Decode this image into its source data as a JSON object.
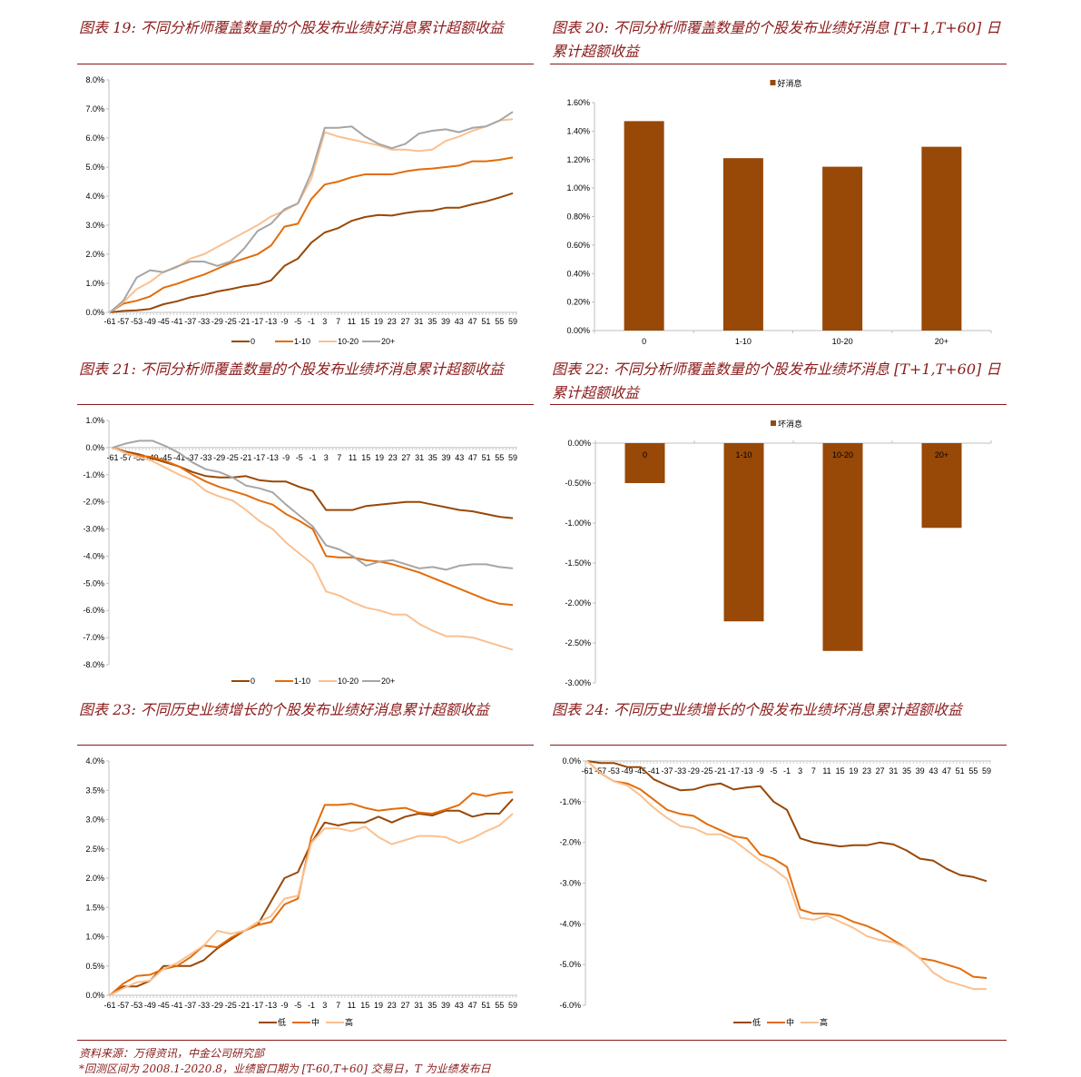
{
  "titles": {
    "c19": "图表 19:  不同分析师覆盖数量的个股发布业绩好消息累计超额收益",
    "c20": "图表 20:  不同分析师覆盖数量的个股发布业绩好消息 [T+1,T+60] 日累计超额收益",
    "c21": "图表 21:  不同分析师覆盖数量的个股发布业绩坏消息累计超额收益",
    "c22": "图表 22:  不同分析师覆盖数量的个股发布业绩坏消息 [T+1,T+60] 日累计超额收益",
    "c23": "图表 23:  不同历史业绩增长的个股发布业绩好消息累计超额收益",
    "c24": "图表 24:  不同历史业绩增长的个股发布业绩坏消息累计超额收益"
  },
  "footer": {
    "source": "资料来源：万得资讯，中金公司研究部",
    "note": "*回测区间为 2008.1-2020.8，业绩窗口期为 [T-60,T+60] 交易日，T 为业绩发布日"
  },
  "colors": {
    "title": "#8b1a1a",
    "bar": "#984807",
    "dark": "#984807",
    "orange": "#e36c09",
    "light": "#fac090",
    "gray": "#a6a6a6"
  },
  "chart_data": [
    {
      "id": "c19",
      "type": "line",
      "x": [
        -61,
        -57,
        -53,
        -49,
        -45,
        -41,
        -37,
        -33,
        -29,
        -25,
        -21,
        -17,
        -13,
        -9,
        -5,
        -1,
        3,
        7,
        11,
        15,
        19,
        23,
        27,
        31,
        35,
        39,
        43,
        47,
        51,
        55,
        59
      ],
      "xticks": [
        "-61",
        "-57",
        "-53",
        "-49",
        "-45",
        "-41",
        "-37",
        "-33",
        "-29",
        "-25",
        "-21",
        "-17",
        "-13",
        "-9",
        "-5",
        "-1",
        "3",
        "7",
        "11",
        "15",
        "19",
        "23",
        "27",
        "31",
        "35",
        "39",
        "43",
        "47",
        "51",
        "55",
        "59"
      ],
      "ylim": [
        0,
        8
      ],
      "yticks": [
        "0.0%",
        "1.0%",
        "2.0%",
        "3.0%",
        "4.0%",
        "5.0%",
        "6.0%",
        "7.0%",
        "8.0%"
      ],
      "legend": "bottom",
      "series": [
        {
          "name": "0",
          "color": "#984807",
          "values": [
            0,
            0.05,
            0.07,
            0.12,
            0.28,
            0.38,
            0.52,
            0.6,
            0.72,
            0.8,
            0.9,
            0.96,
            1.1,
            1.6,
            1.85,
            2.4,
            2.75,
            2.9,
            3.15,
            3.28,
            3.35,
            3.33,
            3.42,
            3.48,
            3.5,
            3.6,
            3.6,
            3.72,
            3.82,
            3.95,
            4.1
          ]
        },
        {
          "name": "1-10",
          "color": "#e36c09",
          "values": [
            0,
            0.3,
            0.4,
            0.55,
            0.85,
            0.98,
            1.15,
            1.3,
            1.5,
            1.7,
            1.85,
            2.0,
            2.3,
            2.95,
            3.05,
            3.9,
            4.4,
            4.5,
            4.65,
            4.75,
            4.75,
            4.75,
            4.85,
            4.92,
            4.95,
            5.0,
            5.05,
            5.2,
            5.2,
            5.25,
            5.33
          ]
        },
        {
          "name": "10-20",
          "color": "#fac090",
          "values": [
            0,
            0.35,
            0.8,
            1.05,
            1.4,
            1.55,
            1.85,
            2.0,
            2.25,
            2.5,
            2.75,
            3.0,
            3.3,
            3.5,
            3.75,
            4.6,
            6.2,
            6.05,
            5.95,
            5.85,
            5.75,
            5.6,
            5.6,
            5.55,
            5.6,
            5.9,
            6.05,
            6.25,
            6.4,
            6.6,
            6.65
          ]
        },
        {
          "name": "20+",
          "color": "#a6a6a6",
          "values": [
            0,
            0.4,
            1.2,
            1.45,
            1.38,
            1.58,
            1.75,
            1.75,
            1.6,
            1.75,
            2.2,
            2.8,
            3.05,
            3.55,
            3.75,
            4.8,
            6.35,
            6.35,
            6.4,
            6.05,
            5.8,
            5.65,
            5.8,
            6.15,
            6.25,
            6.3,
            6.2,
            6.35,
            6.4,
            6.6,
            6.9
          ]
        }
      ]
    },
    {
      "id": "c20",
      "type": "bar",
      "categories": [
        "0",
        "1-10",
        "10-20",
        "20+"
      ],
      "values": [
        1.47,
        1.21,
        1.15,
        1.29
      ],
      "series_name": "好消息",
      "ylim": [
        0,
        1.6
      ],
      "yticks": [
        "0.00%",
        "0.20%",
        "0.40%",
        "0.60%",
        "0.80%",
        "1.00%",
        "1.20%",
        "1.40%",
        "1.60%"
      ],
      "legend": "top"
    },
    {
      "id": "c21",
      "type": "line",
      "x": [
        -61,
        -57,
        -53,
        -49,
        -45,
        -41,
        -37,
        -33,
        -29,
        -25,
        -21,
        -17,
        -13,
        -9,
        -5,
        -1,
        3,
        7,
        11,
        15,
        19,
        23,
        27,
        31,
        35,
        39,
        43,
        47,
        51,
        55,
        59
      ],
      "xticks": [
        "-61",
        "-57",
        "-53",
        "-49",
        "-45",
        "-41",
        "-37",
        "-33",
        "-29",
        "-25",
        "-21",
        "-17",
        "-13",
        "-9",
        "-5",
        "-1",
        "3",
        "7",
        "11",
        "15",
        "19",
        "23",
        "27",
        "31",
        "35",
        "39",
        "43",
        "47",
        "51",
        "55",
        "59"
      ],
      "ylim": [
        -8,
        1
      ],
      "yticks": [
        "-8.0%",
        "-7.0%",
        "-6.0%",
        "-5.0%",
        "-4.0%",
        "-3.0%",
        "-2.0%",
        "-1.0%",
        "0.0%",
        "1.0%"
      ],
      "legend": "bottom",
      "series": [
        {
          "name": "0",
          "color": "#984807",
          "values": [
            0,
            -0.15,
            -0.25,
            -0.4,
            -0.55,
            -0.7,
            -0.9,
            -1.05,
            -1.1,
            -1.1,
            -1.05,
            -1.2,
            -1.25,
            -1.25,
            -1.45,
            -1.6,
            -2.3,
            -2.3,
            -2.3,
            -2.15,
            -2.1,
            -2.05,
            -2.0,
            -2.0,
            -2.1,
            -2.2,
            -2.3,
            -2.35,
            -2.45,
            -2.55,
            -2.6
          ]
        },
        {
          "name": "1-10",
          "color": "#e36c09",
          "values": [
            0,
            -0.2,
            -0.3,
            -0.35,
            -0.5,
            -0.7,
            -1.0,
            -1.25,
            -1.45,
            -1.6,
            -1.75,
            -1.95,
            -2.1,
            -2.45,
            -2.7,
            -3.0,
            -4.0,
            -4.05,
            -4.05,
            -4.15,
            -4.2,
            -4.3,
            -4.45,
            -4.6,
            -4.8,
            -5.0,
            -5.2,
            -5.4,
            -5.6,
            -5.75,
            -5.8
          ]
        },
        {
          "name": "10-20",
          "color": "#fac090",
          "values": [
            0,
            -0.2,
            -0.35,
            -0.5,
            -0.75,
            -1.0,
            -1.2,
            -1.6,
            -1.8,
            -1.95,
            -2.3,
            -2.7,
            -3.0,
            -3.5,
            -3.9,
            -4.3,
            -5.3,
            -5.45,
            -5.7,
            -5.9,
            -6.0,
            -6.15,
            -6.15,
            -6.5,
            -6.75,
            -6.95,
            -6.95,
            -7.0,
            -7.15,
            -7.3,
            -7.45
          ]
        },
        {
          "name": "20+",
          "color": "#a6a6a6",
          "values": [
            0,
            0.15,
            0.25,
            0.25,
            0.05,
            -0.2,
            -0.55,
            -0.8,
            -0.9,
            -1.1,
            -1.4,
            -1.5,
            -1.65,
            -2.1,
            -2.5,
            -2.9,
            -3.6,
            -3.75,
            -4.0,
            -4.35,
            -4.2,
            -4.15,
            -4.3,
            -4.45,
            -4.4,
            -4.5,
            -4.35,
            -4.3,
            -4.3,
            -4.4,
            -4.45
          ]
        }
      ]
    },
    {
      "id": "c22",
      "type": "bar",
      "categories": [
        "0",
        "1-10",
        "10-20",
        "20+"
      ],
      "values": [
        -0.5,
        -2.23,
        -2.6,
        -1.06
      ],
      "series_name": "坏消息",
      "ylim": [
        -3,
        0
      ],
      "yticks": [
        "-3.00%",
        "-2.50%",
        "-2.00%",
        "-1.50%",
        "-1.00%",
        "-0.50%",
        "0.00%"
      ],
      "legend": "top"
    },
    {
      "id": "c23",
      "type": "line",
      "x": [
        -61,
        -57,
        -53,
        -49,
        -45,
        -41,
        -37,
        -33,
        -29,
        -25,
        -21,
        -17,
        -13,
        -9,
        -5,
        -1,
        3,
        7,
        11,
        15,
        19,
        23,
        27,
        31,
        35,
        39,
        43,
        47,
        51,
        55,
        59
      ],
      "xticks": [
        "-61",
        "-57",
        "-53",
        "-49",
        "-45",
        "-41",
        "-37",
        "-33",
        "-29",
        "-25",
        "-21",
        "-17",
        "-13",
        "-9",
        "-5",
        "-1",
        "3",
        "7",
        "11",
        "15",
        "19",
        "23",
        "27",
        "31",
        "35",
        "39",
        "43",
        "47",
        "51",
        "55",
        "59"
      ],
      "ylim": [
        0,
        4
      ],
      "yticks": [
        "0.0%",
        "0.5%",
        "1.0%",
        "1.5%",
        "2.0%",
        "2.5%",
        "3.0%",
        "3.5%",
        "4.0%"
      ],
      "legend": "bottom",
      "series": [
        {
          "name": "低",
          "color": "#984807",
          "values": [
            0,
            0.15,
            0.15,
            0.25,
            0.5,
            0.5,
            0.5,
            0.6,
            0.8,
            0.95,
            1.1,
            1.2,
            1.6,
            2.0,
            2.1,
            2.6,
            2.95,
            2.9,
            2.95,
            2.95,
            3.05,
            2.95,
            3.05,
            3.1,
            3.07,
            3.15,
            3.15,
            3.05,
            3.1,
            3.1,
            3.35
          ]
        },
        {
          "name": "中",
          "color": "#e36c09",
          "values": [
            0,
            0.2,
            0.33,
            0.35,
            0.45,
            0.5,
            0.65,
            0.85,
            0.82,
            0.98,
            1.1,
            1.2,
            1.25,
            1.55,
            1.65,
            2.7,
            3.25,
            3.25,
            3.27,
            3.2,
            3.15,
            3.18,
            3.2,
            3.12,
            3.1,
            3.17,
            3.25,
            3.45,
            3.4,
            3.45,
            3.47
          ]
        },
        {
          "name": "高",
          "color": "#fac090",
          "values": [
            0,
            0.12,
            0.22,
            0.25,
            0.45,
            0.55,
            0.7,
            0.85,
            1.1,
            1.05,
            1.1,
            1.25,
            1.35,
            1.65,
            1.7,
            2.6,
            2.85,
            2.85,
            2.8,
            2.88,
            2.7,
            2.58,
            2.65,
            2.72,
            2.72,
            2.7,
            2.6,
            2.68,
            2.8,
            2.9,
            3.1
          ]
        }
      ]
    },
    {
      "id": "c24",
      "type": "line",
      "x": [
        -61,
        -57,
        -53,
        -49,
        -45,
        -41,
        -37,
        -33,
        -29,
        -25,
        -21,
        -17,
        -13,
        -9,
        -5,
        -1,
        3,
        7,
        11,
        15,
        19,
        23,
        27,
        31,
        35,
        39,
        43,
        47,
        51,
        55,
        59
      ],
      "xticks": [
        "-61",
        "-57",
        "-53",
        "-49",
        "-45",
        "-41",
        "-37",
        "-33",
        "-29",
        "-25",
        "-21",
        "-17",
        "-13",
        "-9",
        "-5",
        "-1",
        "3",
        "7",
        "11",
        "15",
        "19",
        "23",
        "27",
        "31",
        "35",
        "39",
        "43",
        "47",
        "51",
        "55",
        "59"
      ],
      "ylim": [
        -6,
        0
      ],
      "yticks": [
        "-6.0%",
        "-5.0%",
        "-4.0%",
        "-3.0%",
        "-2.0%",
        "-1.0%",
        "0.0%"
      ],
      "legend": "bottom",
      "series": [
        {
          "name": "低",
          "color": "#984807",
          "values": [
            0,
            -0.05,
            -0.05,
            -0.15,
            -0.15,
            -0.45,
            -0.6,
            -0.72,
            -0.7,
            -0.6,
            -0.55,
            -0.7,
            -0.65,
            -0.62,
            -1.0,
            -1.2,
            -1.9,
            -2.0,
            -2.05,
            -2.1,
            -2.07,
            -2.07,
            -2.0,
            -2.05,
            -2.2,
            -2.4,
            -2.45,
            -2.65,
            -2.8,
            -2.85,
            -2.95
          ]
        },
        {
          "name": "中",
          "color": "#e36c09",
          "values": [
            0,
            -0.3,
            -0.5,
            -0.55,
            -0.7,
            -0.95,
            -1.2,
            -1.3,
            -1.35,
            -1.55,
            -1.7,
            -1.85,
            -1.9,
            -2.3,
            -2.4,
            -2.6,
            -3.65,
            -3.75,
            -3.75,
            -3.8,
            -3.95,
            -4.05,
            -4.2,
            -4.4,
            -4.6,
            -4.85,
            -4.9,
            -5.0,
            -5.1,
            -5.3,
            -5.33
          ]
        },
        {
          "name": "高",
          "color": "#fac090",
          "values": [
            0,
            -0.3,
            -0.5,
            -0.6,
            -0.85,
            -1.15,
            -1.4,
            -1.6,
            -1.65,
            -1.8,
            -1.8,
            -1.95,
            -2.2,
            -2.45,
            -2.65,
            -2.9,
            -3.85,
            -3.9,
            -3.8,
            -3.95,
            -4.1,
            -4.3,
            -4.4,
            -4.45,
            -4.6,
            -4.85,
            -5.2,
            -5.4,
            -5.5,
            -5.6,
            -5.6
          ]
        }
      ]
    }
  ]
}
